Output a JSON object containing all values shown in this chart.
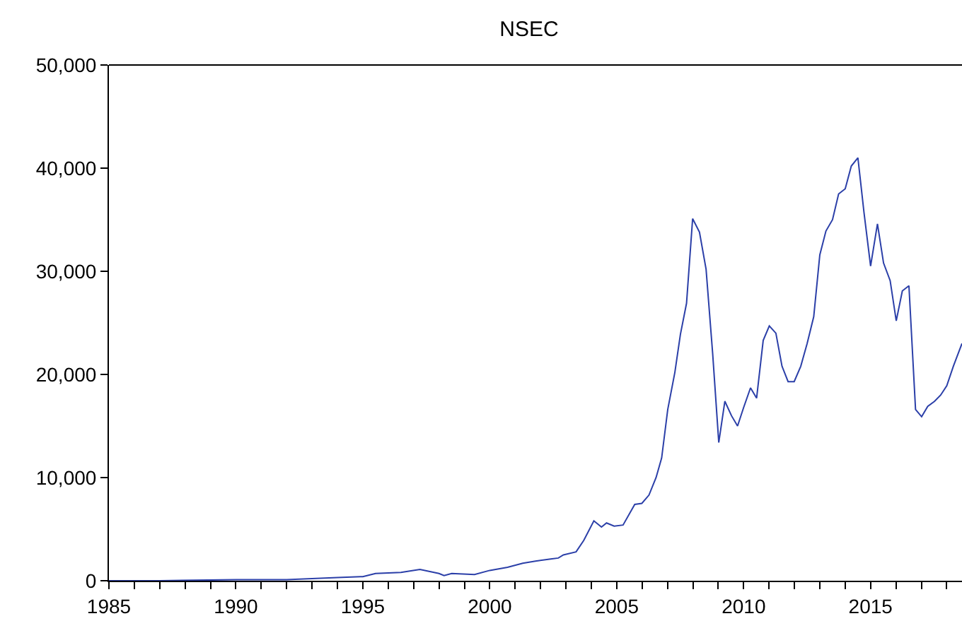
{
  "chart_data": {
    "type": "line",
    "title": "NSEC",
    "xlim": [
      1985,
      2018.6
    ],
    "xticks": [
      1985,
      {
        "value": 1986,
        "label": null
      },
      {
        "value": 1987,
        "label": null
      },
      {
        "value": 1988,
        "label": null
      },
      {
        "value": 1989,
        "label": null
      },
      1990,
      {
        "value": 1991,
        "label": null
      },
      {
        "value": 1992,
        "label": null
      },
      {
        "value": 1993,
        "label": null
      },
      {
        "value": 1994,
        "label": null
      },
      1995,
      {
        "value": 1996,
        "label": null
      },
      {
        "value": 1997,
        "label": null
      },
      {
        "value": 1998,
        "label": null
      },
      {
        "value": 1999,
        "label": null
      },
      2000,
      {
        "value": 2001,
        "label": null
      },
      {
        "value": 2002,
        "label": null
      },
      {
        "value": 2003,
        "label": null
      },
      {
        "value": 2004,
        "label": null
      },
      2005,
      {
        "value": 2006,
        "label": null
      },
      {
        "value": 2007,
        "label": null
      },
      {
        "value": 2008,
        "label": null
      },
      {
        "value": 2009,
        "label": null
      },
      2010,
      {
        "value": 2011,
        "label": null
      },
      {
        "value": 2012,
        "label": null
      },
      {
        "value": 2013,
        "label": null
      },
      {
        "value": 2014,
        "label": null
      },
      2015,
      {
        "value": 2016,
        "label": null
      },
      {
        "value": 2017,
        "label": null
      },
      {
        "value": 2018,
        "label": null
      }
    ],
    "ylim": [
      0,
      50000
    ],
    "yticks": [
      0,
      {
        "value": 10000,
        "label": "10,000"
      },
      {
        "value": 20000,
        "label": "20,000"
      },
      {
        "value": 30000,
        "label": "30,000"
      },
      {
        "value": 40000,
        "label": "40,000"
      },
      {
        "value": 50000,
        "label": "50,000"
      }
    ],
    "grid": false,
    "marker": "none",
    "line_style": "solid",
    "series": [
      {
        "color": "#2b3fa8",
        "x": [
          1985,
          1987,
          1990,
          1992,
          1994,
          1995,
          1995.5,
          1996.5,
          1997.25,
          1998,
          1998.2,
          1998.5,
          1999.4,
          2000,
          2000.7,
          2001.3,
          2001.8,
          2002.4,
          2002.7,
          2002.9,
          2003.4,
          2003.7,
          2004.1,
          2004.4,
          2004.6,
          2004.9,
          2005.25,
          2005.71,
          2005.99,
          2006.27,
          2006.55,
          2006.77,
          2007.01,
          2007.29,
          2007.51,
          2007.75,
          2007.99,
          2008.26,
          2008.52,
          2008.78,
          2009.02,
          2009.26,
          2009.52,
          2009.76,
          2010,
          2010.27,
          2010.51,
          2010.77,
          2011.01,
          2011.27,
          2011.51,
          2011.75,
          2011.99,
          2012.25,
          2012.5,
          2012.76,
          2013,
          2013.24,
          2013.5,
          2013.74,
          2014,
          2014.24,
          2014.5,
          2014.74,
          2015,
          2015.27,
          2015.51,
          2015.77,
          2016.01,
          2016.25,
          2016.51,
          2016.77,
          2017.01,
          2017.25,
          2017.52,
          2017.76,
          2018,
          2018.26,
          2018.6
        ],
        "values": [
          0,
          0,
          100,
          100,
          300,
          400,
          700,
          800,
          1100,
          700,
          500,
          700,
          600,
          1000,
          1300,
          1700,
          1900,
          2100,
          2200,
          2500,
          2800,
          3900,
          5800,
          5200,
          5600,
          5300,
          5400,
          7400,
          7500,
          8300,
          10000,
          11900,
          16600,
          20200,
          23900,
          26900,
          35100,
          33800,
          30200,
          22000,
          13400,
          17400,
          16000,
          15000,
          16800,
          18700,
          17700,
          23300,
          24700,
          24000,
          20800,
          19300,
          19300,
          20800,
          23000,
          25600,
          31600,
          33900,
          35000,
          37500,
          38000,
          40200,
          41000,
          35700,
          30500,
          34600,
          30800,
          29100,
          25200,
          28100,
          28600,
          16600,
          15900,
          16900,
          17400,
          18000,
          18900,
          20800,
          23000
        ]
      }
    ]
  }
}
